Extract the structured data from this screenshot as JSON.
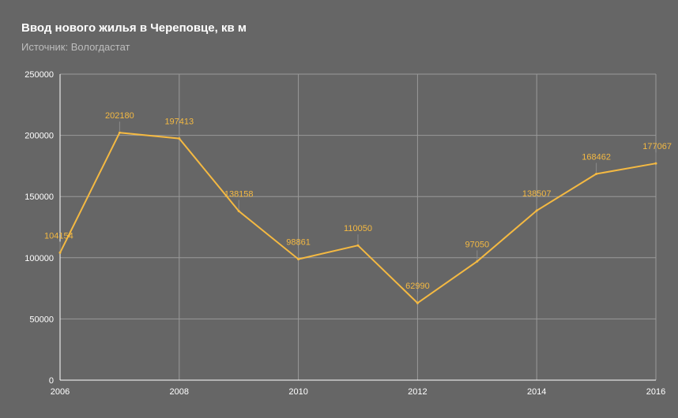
{
  "header": {
    "title": "Ввод нового жилья в Череповце, кв м",
    "subtitle": "Источник: Вологдастат"
  },
  "colors": {
    "background": "#666666",
    "grid": "#9a9a9a",
    "axis": "#ffffff",
    "line": "#f4b942",
    "label": "#f4b942",
    "label_tick": "#8a8a8a"
  },
  "chart_data": {
    "type": "line",
    "title": "Ввод нового жилья в Череповце, кв м",
    "subtitle": "Источник: Вологдастат",
    "xlabel": "",
    "ylabel": "",
    "x": [
      2006,
      2007,
      2008,
      2009,
      2010,
      2011,
      2012,
      2013,
      2014,
      2015,
      2016
    ],
    "series": [
      {
        "values": [
          104154,
          202180,
          197413,
          138158,
          98861,
          110050,
          62990,
          97050,
          138507,
          168462,
          177067
        ]
      }
    ],
    "data_labels": [
      "104154",
      "202180",
      "197413",
      "138158",
      "98861",
      "110050",
      "62990",
      "97050",
      "138507",
      "168462",
      "177067"
    ],
    "xlim": [
      2006,
      2016
    ],
    "ylim": [
      0,
      250000
    ],
    "x_ticks": [
      "2006",
      "2008",
      "2010",
      "2012",
      "2014",
      "2016"
    ],
    "y_ticks": [
      "0",
      "50000",
      "100000",
      "150000",
      "200000",
      "250000"
    ],
    "grid": true,
    "legend": "none"
  }
}
